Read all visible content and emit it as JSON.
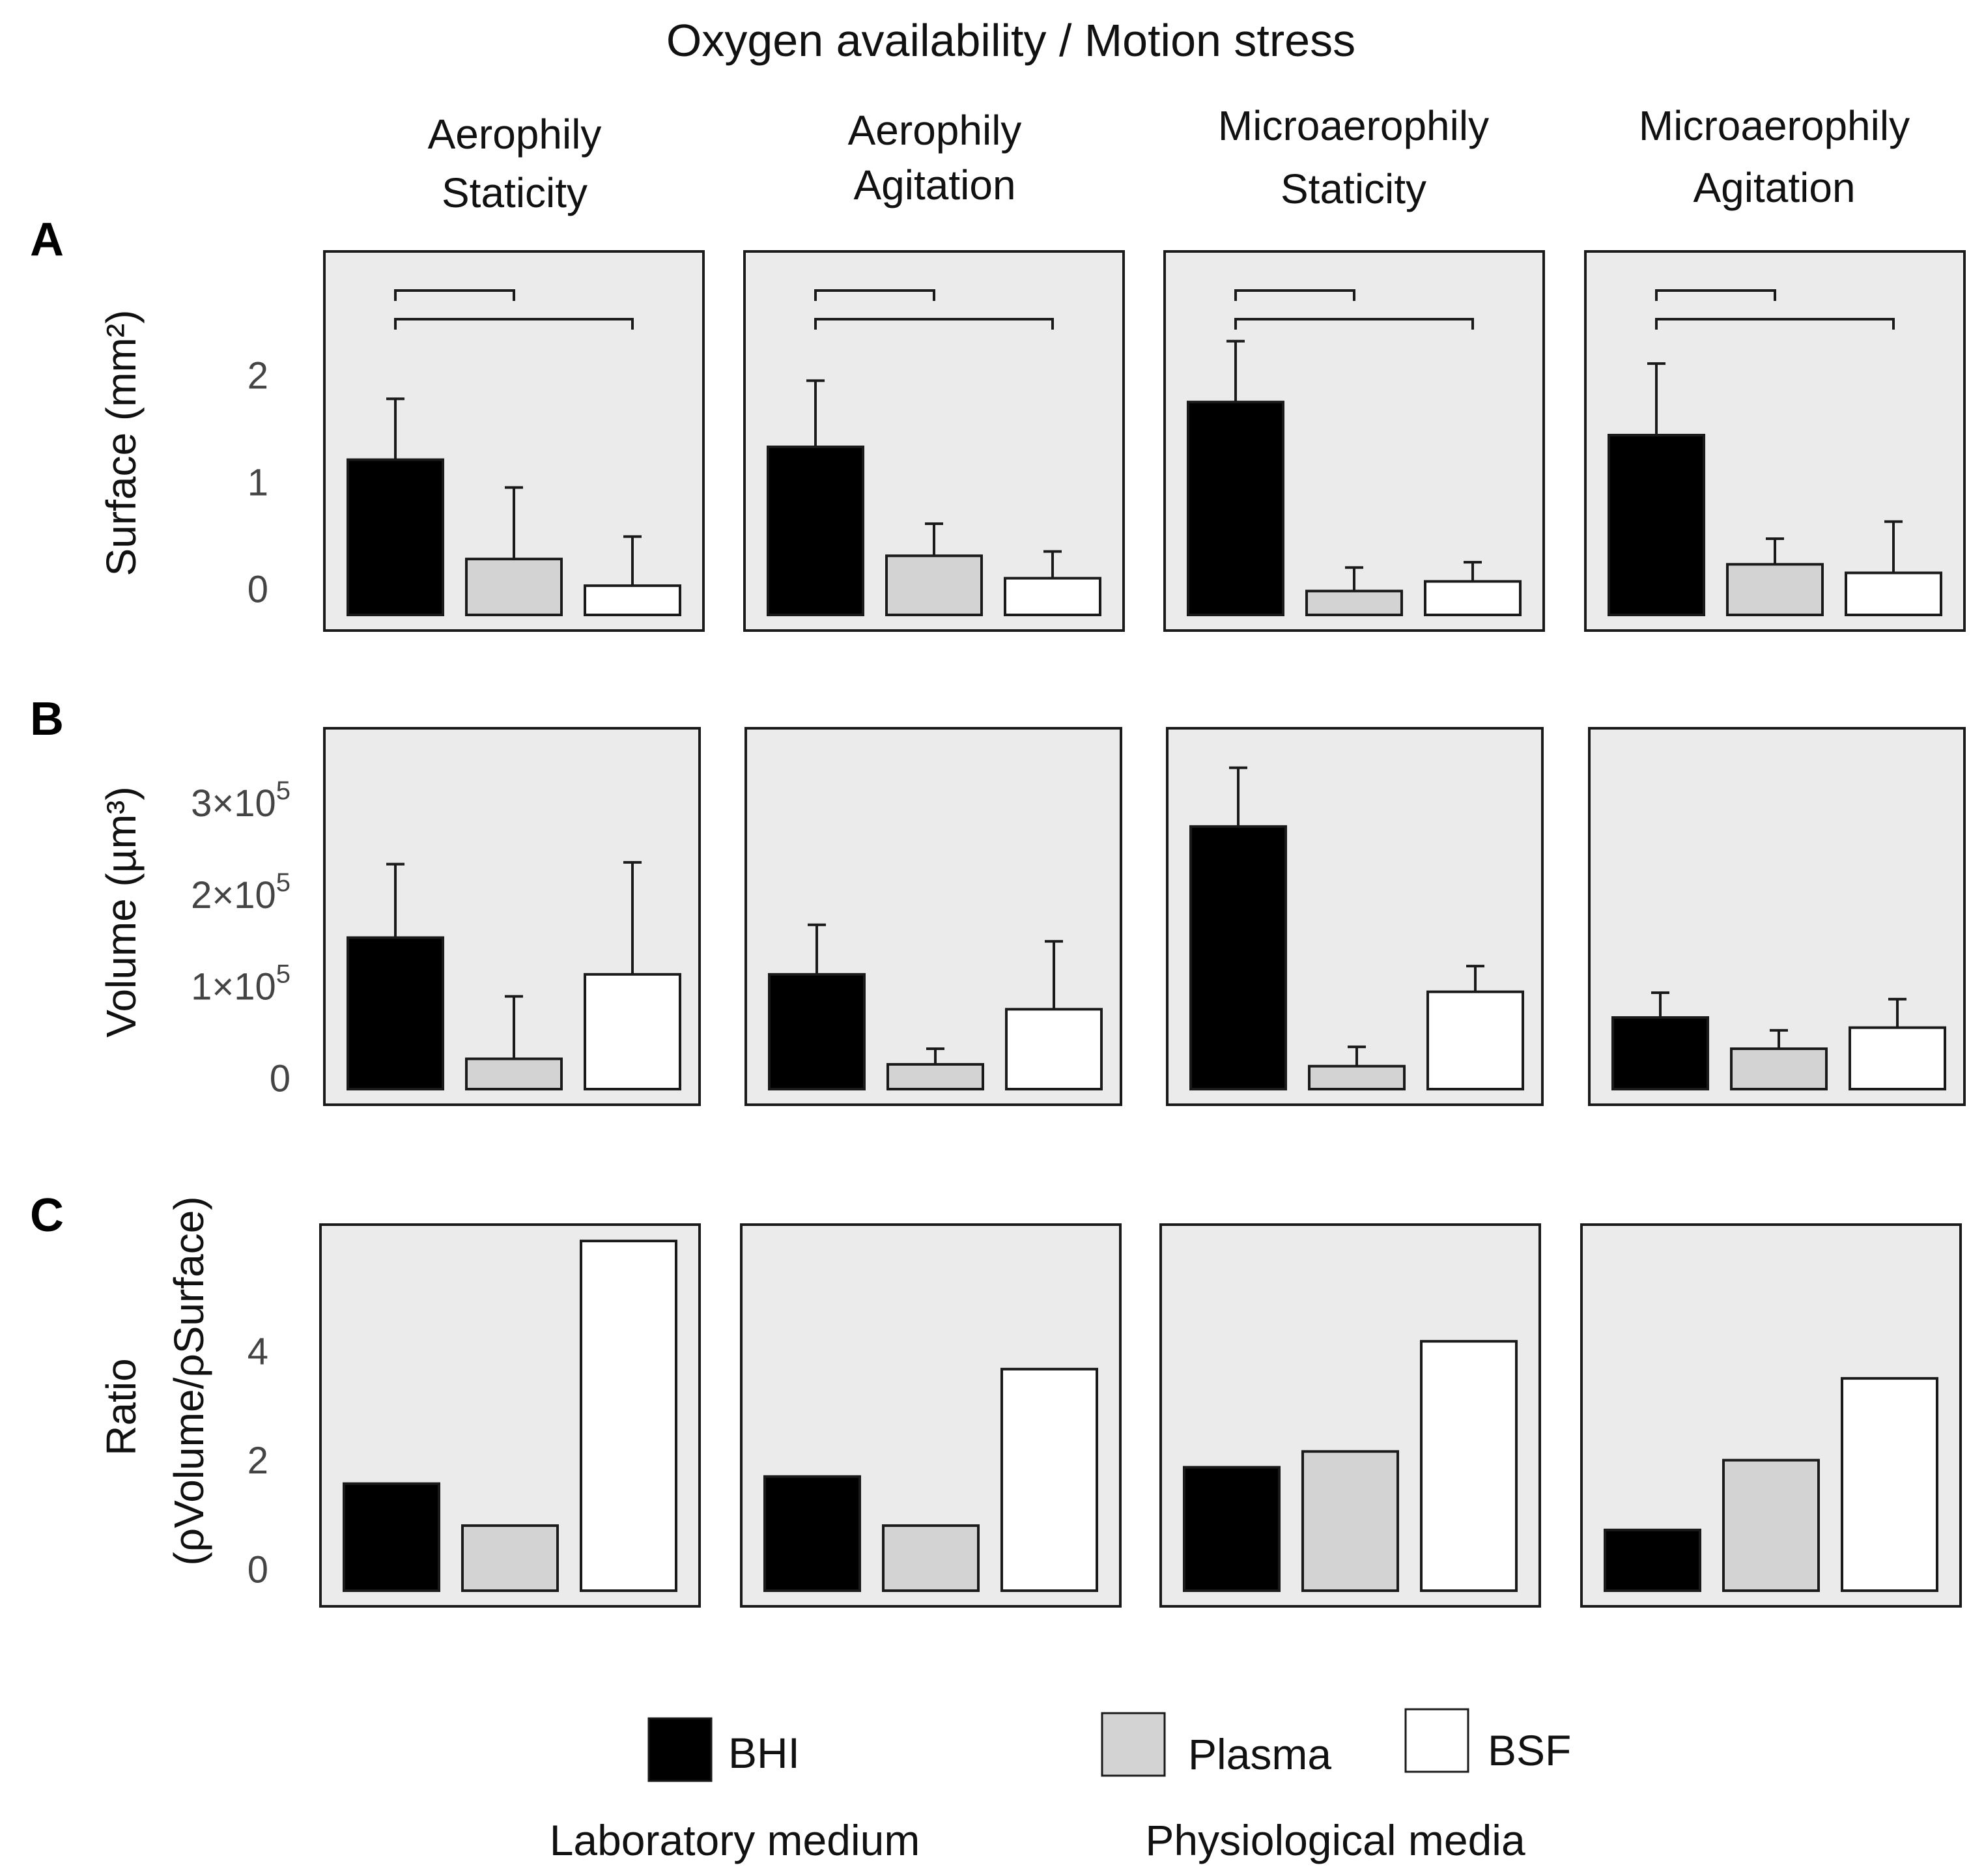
{
  "header": {
    "title": "Oxygen availability / Motion stress"
  },
  "conditions": [
    {
      "line1": "Aerophily",
      "line2": "Staticity"
    },
    {
      "line1": "Aerophily",
      "line2": "Agitation"
    },
    {
      "line1": "Microaerophily",
      "line2": "Staticity"
    },
    {
      "line1": "Microaerophily",
      "line2": "Agitation"
    }
  ],
  "colors": {
    "BHI": "#000000",
    "Plasma": "#d3d3d3",
    "BSF": "#ffffff",
    "panel_bg": "#ebebeb",
    "border": "#1a1a1a"
  },
  "legend": {
    "items": [
      {
        "name": "BHI",
        "color": "#000000"
      },
      {
        "name": "Plasma",
        "color": "#d3d3d3"
      },
      {
        "name": "BSF",
        "color": "#ffffff"
      }
    ],
    "groups": {
      "laboratory": "Laboratory medium",
      "physiological": "Physiological media"
    }
  },
  "chart_data": [
    {
      "panel": "A",
      "type": "bar",
      "ylabel": "Surface (mm²)",
      "ylim": [
        -0.4,
        3.15
      ],
      "yticks": [
        {
          "value": 0,
          "label": "0"
        },
        {
          "value": 1,
          "label": "1"
        },
        {
          "value": 2,
          "label": "2"
        }
      ],
      "categories": [
        "BHI",
        "Plasma",
        "BSF"
      ],
      "significance_brackets": [
        [
          0,
          1
        ],
        [
          0,
          2
        ]
      ],
      "facets": [
        {
          "values": [
            1.2,
            0.27,
            0.02
          ],
          "errors": [
            0.57,
            0.67,
            0.46
          ]
        },
        {
          "values": [
            1.32,
            0.3,
            0.09
          ],
          "errors": [
            0.62,
            0.3,
            0.25
          ]
        },
        {
          "values": [
            1.74,
            -0.03,
            0.06
          ],
          "errors": [
            0.57,
            0.22,
            0.18
          ]
        },
        {
          "values": [
            1.43,
            0.22,
            0.14
          ],
          "errors": [
            0.67,
            0.24,
            0.48
          ]
        }
      ]
    },
    {
      "panel": "B",
      "type": "bar",
      "ylabel": "Volume (µm³)",
      "ylim": [
        -0.3,
        3.8
      ],
      "yticks": [
        {
          "value": 0,
          "label": "0"
        },
        {
          "value": 1,
          "label": "1×10",
          "exp": "5"
        },
        {
          "value": 2,
          "label": "2×10",
          "exp": "5"
        },
        {
          "value": 3,
          "label": "3×10",
          "exp": "5"
        }
      ],
      "categories": [
        "BHI",
        "Plasma",
        "BSF"
      ],
      "facets": [
        {
          "values": [
            1.52,
            0.2,
            1.12
          ],
          "errors": [
            0.8,
            0.68,
            1.22
          ]
        },
        {
          "values": [
            1.12,
            0.14,
            0.74
          ],
          "errors": [
            0.54,
            0.17,
            0.74
          ]
        },
        {
          "values": [
            2.73,
            0.12,
            0.93
          ],
          "errors": [
            0.64,
            0.21,
            0.28
          ]
        },
        {
          "values": [
            0.65,
            0.31,
            0.54
          ],
          "errors": [
            0.27,
            0.2,
            0.31
          ]
        }
      ]
    },
    {
      "panel": "C",
      "type": "bar",
      "ylabel_line1": "Ratio",
      "ylabel_line2": "(ρVolume/ρSurface)",
      "ylim": [
        -0.7,
        6.3
      ],
      "yticks": [
        {
          "value": 0,
          "label": "0"
        },
        {
          "value": 2,
          "label": "2"
        },
        {
          "value": 4,
          "label": "4"
        }
      ],
      "categories": [
        "BHI",
        "Plasma",
        "BSF"
      ],
      "facets": [
        {
          "values": [
            1.55,
            0.78,
            6.0
          ]
        },
        {
          "values": [
            1.68,
            0.78,
            3.65
          ]
        },
        {
          "values": [
            1.85,
            2.14,
            4.16
          ]
        },
        {
          "values": [
            0.7,
            1.98,
            3.48
          ]
        }
      ]
    }
  ]
}
